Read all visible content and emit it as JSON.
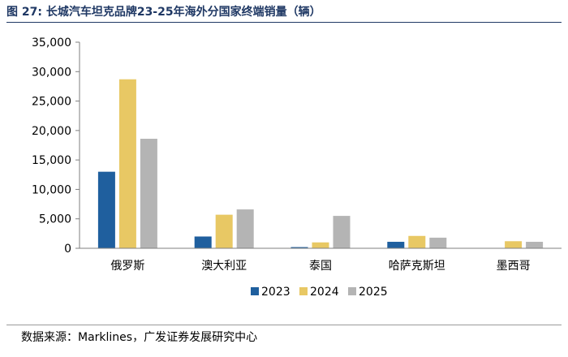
{
  "figure": {
    "title": "图 27:  长城汽车坦克品牌23-25年海外分国家终端销量（辆）",
    "source": "数据来源：Marklines，广发证券发展研究中心"
  },
  "chart_data": {
    "type": "bar",
    "title": "长城汽车坦克品牌23-25年海外分国家终端销量（辆）",
    "xlabel": "",
    "ylabel": "",
    "categories": [
      "俄罗斯",
      "澳大利亚",
      "泰国",
      "哈萨克斯坦",
      "墨西哥"
    ],
    "series": [
      {
        "name": "2023",
        "color": "#1f5f9e",
        "values": [
          13000,
          2000,
          200,
          1100,
          0
        ]
      },
      {
        "name": "2024",
        "color": "#e8c864",
        "values": [
          28700,
          5700,
          1000,
          2100,
          1200
        ]
      },
      {
        "name": "2025",
        "color": "#b4b4b4",
        "values": [
          18600,
          6600,
          5500,
          1800,
          1100
        ]
      }
    ],
    "ylim": [
      0,
      35000
    ],
    "yticks": [
      0,
      5000,
      10000,
      15000,
      20000,
      25000,
      30000,
      35000
    ],
    "ytick_labels": [
      "0",
      "5,000",
      "10,000",
      "15,000",
      "20,000",
      "25,000",
      "30,000",
      "35,000"
    ],
    "grid": false,
    "legend_position": "bottom"
  }
}
